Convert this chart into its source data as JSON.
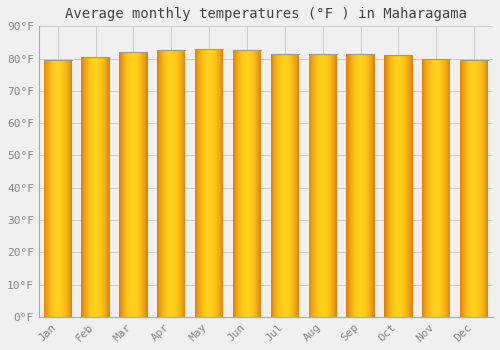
{
  "title": "Average monthly temperatures (°F ) in Maharagama",
  "months": [
    "Jan",
    "Feb",
    "Mar",
    "Apr",
    "May",
    "Jun",
    "Jul",
    "Aug",
    "Sep",
    "Oct",
    "Nov",
    "Dec"
  ],
  "values": [
    79.5,
    80.5,
    82.0,
    82.5,
    83.0,
    82.5,
    81.5,
    81.5,
    81.5,
    81.0,
    80.0,
    79.5
  ],
  "ylim": [
    0,
    90
  ],
  "ytick_step": 10,
  "bar_color_center": "#FFD000",
  "bar_color_edge": "#E08000",
  "bar_top_line": "#999999",
  "background_color": "#f0f0f0",
  "plot_bg_color": "#f0f0f0",
  "grid_color": "#cccccc",
  "title_fontsize": 10,
  "tick_fontsize": 8,
  "title_font": "monospace",
  "tick_font": "monospace"
}
